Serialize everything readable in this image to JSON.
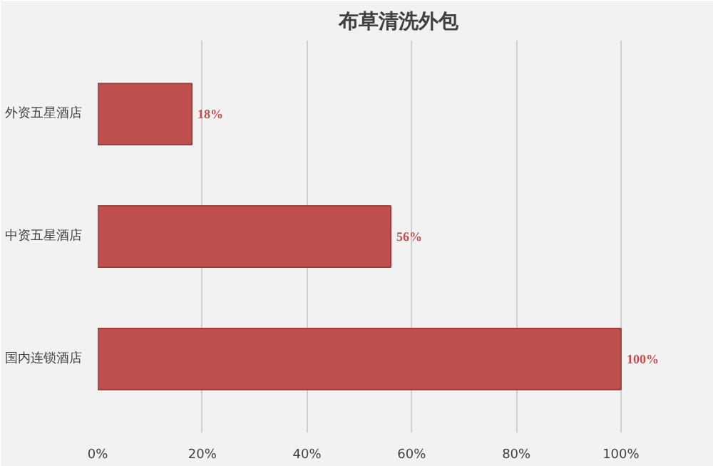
{
  "chart_data": {
    "type": "bar",
    "orientation": "horizontal",
    "title": "布草清洗外包",
    "categories": [
      "外资五星酒店",
      "中资五星酒店",
      "国内连锁酒店"
    ],
    "values": [
      18,
      56,
      100
    ],
    "color": "#c0504d",
    "value_labels": [
      "18%",
      "56%",
      "100%"
    ],
    "xlim": [
      0,
      115
    ],
    "xticks": [
      {
        "value": 0,
        "label": "0%"
      },
      {
        "value": 20,
        "label": "20%"
      },
      {
        "value": 40,
        "label": "40%"
      },
      {
        "value": 60,
        "label": "60%"
      },
      {
        "value": 80,
        "label": "80%"
      },
      {
        "value": 100,
        "label": "100%"
      }
    ],
    "grid": "x"
  }
}
